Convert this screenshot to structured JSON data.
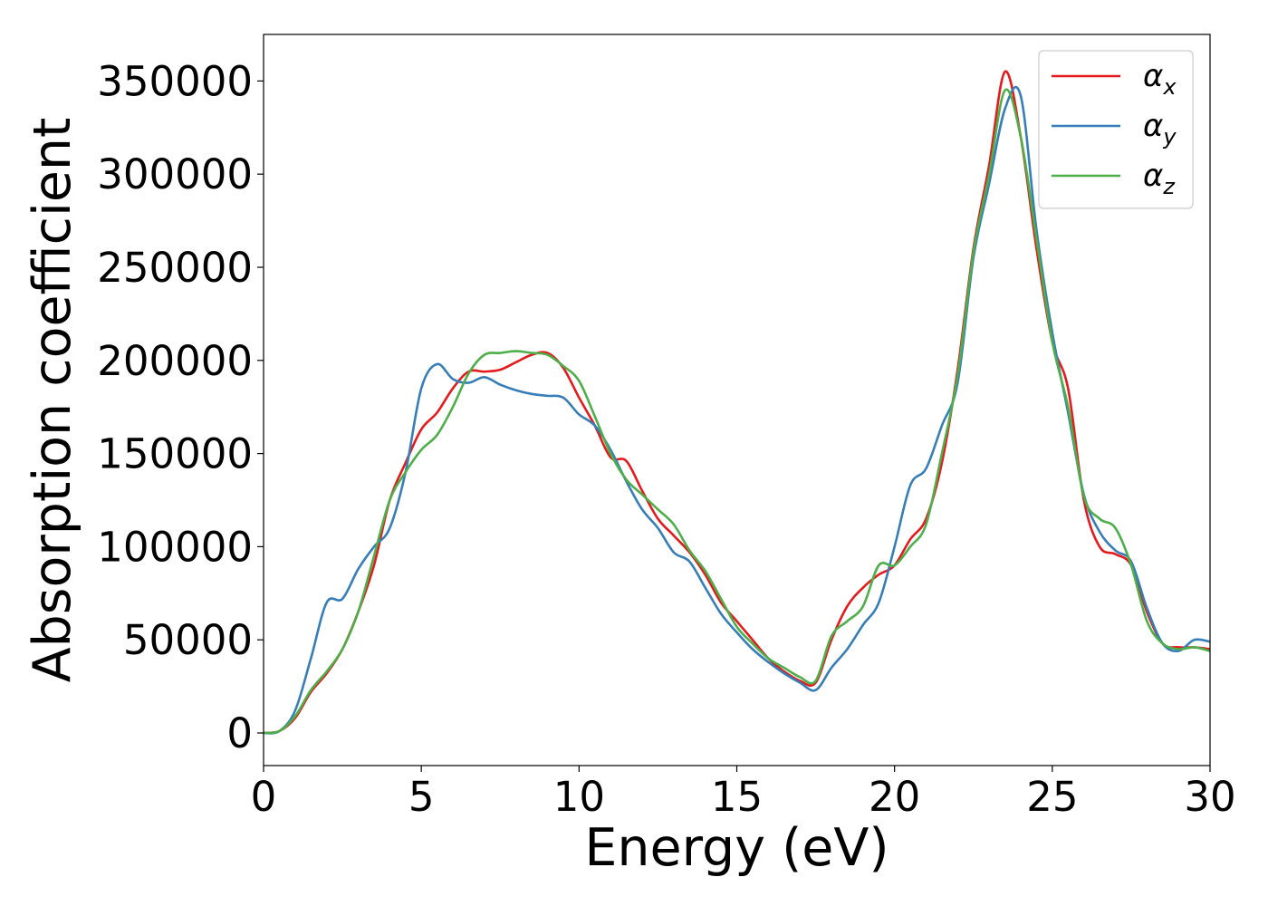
{
  "chart_data": {
    "type": "line",
    "title": "",
    "xlabel": "Energy (eV)",
    "ylabel": "Absorption coefficient",
    "xlim": [
      0,
      30
    ],
    "ylim": [
      -17500,
      375000
    ],
    "xticks": [
      0,
      5,
      10,
      15,
      20,
      25,
      30
    ],
    "yticks": [
      0,
      50000,
      100000,
      150000,
      200000,
      250000,
      300000,
      350000
    ],
    "grid": false,
    "legend_placement": "top-right",
    "x": [
      0,
      0.5,
      1.0,
      1.5,
      2.0,
      2.5,
      3.0,
      3.5,
      4.0,
      4.5,
      5.0,
      5.5,
      6.0,
      6.5,
      7.0,
      7.5,
      8.0,
      8.5,
      9.0,
      9.5,
      10.0,
      10.5,
      11.0,
      11.5,
      12.0,
      12.5,
      13.0,
      13.5,
      14.0,
      14.5,
      15.0,
      15.5,
      16.0,
      16.5,
      17.0,
      17.5,
      18.0,
      18.5,
      19.0,
      19.5,
      20.0,
      20.5,
      21.0,
      21.5,
      22.0,
      22.5,
      23.0,
      23.5,
      24.0,
      24.5,
      25.0,
      25.5,
      26.0,
      26.5,
      27.0,
      27.5,
      28.0,
      28.5,
      29.0,
      29.5,
      30.0
    ],
    "series": [
      {
        "name": "α",
        "subscript": "x",
        "color": "#e41a1c",
        "values": [
          0,
          1000,
          8000,
          22000,
          32000,
          45000,
          65000,
          90000,
          125000,
          145000,
          163000,
          172000,
          185000,
          194000,
          194000,
          195000,
          199000,
          203000,
          204000,
          196000,
          180000,
          165000,
          148000,
          146000,
          130000,
          115000,
          106000,
          97000,
          85000,
          70000,
          60000,
          50000,
          40000,
          33000,
          28000,
          27000,
          50000,
          68000,
          78000,
          85000,
          90000,
          104000,
          115000,
          145000,
          195000,
          260000,
          305000,
          355000,
          320000,
          260000,
          210000,
          185000,
          125000,
          100000,
          96000,
          90000,
          65000,
          48000,
          46000,
          46000,
          45000
        ]
      },
      {
        "name": "α",
        "subscript": "y",
        "color": "#377eb8",
        "values": [
          0,
          1000,
          12000,
          40000,
          70000,
          72000,
          88000,
          100000,
          110000,
          140000,
          185000,
          198000,
          190000,
          188000,
          191000,
          187000,
          184000,
          182000,
          181000,
          180000,
          171000,
          165000,
          152000,
          135000,
          120000,
          110000,
          97000,
          92000,
          78000,
          64000,
          54000,
          45000,
          38000,
          32000,
          27000,
          23000,
          35000,
          45000,
          58000,
          70000,
          100000,
          133000,
          142000,
          165000,
          188000,
          255000,
          295000,
          335000,
          342000,
          270000,
          215000,
          172000,
          128000,
          108000,
          98000,
          92000,
          67000,
          48000,
          44000,
          50000,
          49000
        ]
      },
      {
        "name": "α",
        "subscript": "z",
        "color": "#4daf4a",
        "values": [
          0,
          1000,
          9000,
          23000,
          33000,
          45000,
          65000,
          95000,
          125000,
          140000,
          152000,
          160000,
          175000,
          193000,
          203000,
          204000,
          205000,
          204000,
          203000,
          197000,
          189000,
          170000,
          150000,
          136000,
          128000,
          120000,
          112000,
          98000,
          87000,
          72000,
          57000,
          48000,
          40000,
          35000,
          30000,
          28000,
          52000,
          60000,
          68000,
          90000,
          90000,
          100000,
          112000,
          150000,
          192000,
          258000,
          300000,
          345000,
          320000,
          265000,
          210000,
          175000,
          127000,
          115000,
          110000,
          90000,
          60000,
          48000,
          45000,
          46000,
          44000
        ]
      }
    ]
  }
}
